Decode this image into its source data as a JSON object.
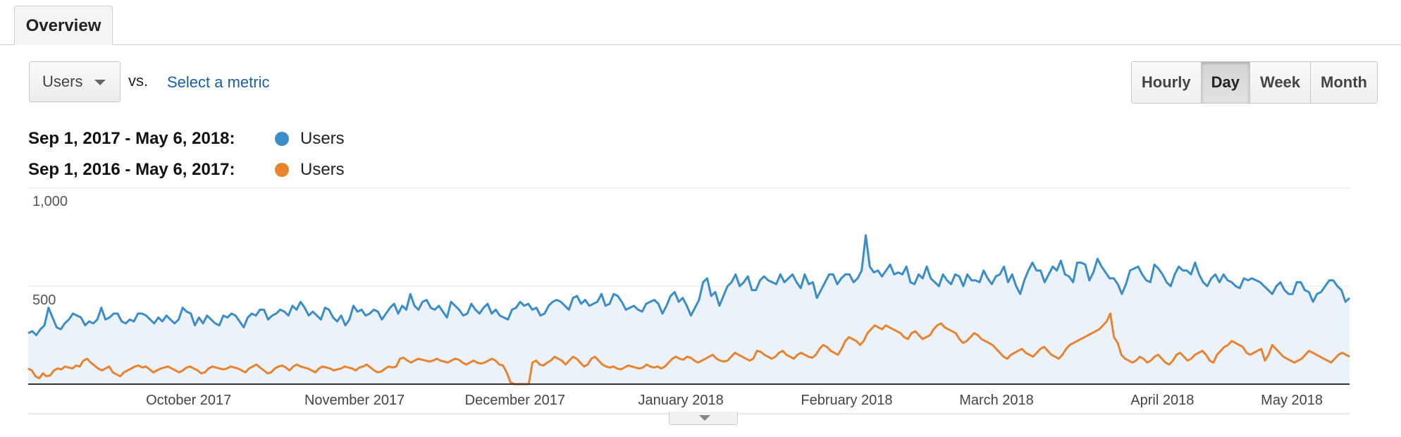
{
  "tabs": {
    "overview_label": "Overview"
  },
  "metric_selector": {
    "value": "Users",
    "vs_label": "vs.",
    "select_metric_label": "Select a metric"
  },
  "granularity": {
    "options": [
      "Hourly",
      "Day",
      "Week",
      "Month"
    ],
    "selected": "Day"
  },
  "legend": [
    {
      "range": "Sep 1, 2017 - May 6, 2018:",
      "metric": "Users",
      "color": "#3b8dc8"
    },
    {
      "range": "Sep 1, 2016 - May 6, 2017:",
      "metric": "Users",
      "color": "#e8832f"
    }
  ],
  "colors": {
    "series_current": "#3b8dc8",
    "series_previous": "#e8832f",
    "area_fill": "#ebf2fa"
  },
  "icons": {
    "dropdown": "caret-down-icon",
    "expand": "expand-triangle-icon"
  },
  "chart_data": {
    "type": "line",
    "x_start": "2017-09-01",
    "x_end": "2018-05-06",
    "y_ticks": [
      "1,000",
      "500"
    ],
    "x_tick_labels": [
      {
        "label": "October 2017",
        "date": "2017-10-01"
      },
      {
        "label": "November 2017",
        "date": "2017-11-01"
      },
      {
        "label": "December 2017",
        "date": "2017-12-01"
      },
      {
        "label": "January 2018",
        "date": "2018-01-01"
      },
      {
        "label": "February 2018",
        "date": "2018-02-01"
      },
      {
        "label": "March 2018",
        "date": "2018-03-01"
      },
      {
        "label": "April 2018",
        "date": "2018-04-01"
      },
      {
        "label": "May 2018",
        "date": "2018-05-01"
      }
    ],
    "ylim": [
      0,
      1000
    ],
    "grid": true,
    "series": [
      {
        "name": "Users",
        "date_range": "Sep 1, 2017 - May 6, 2018",
        "fill": true,
        "values": [
          260,
          270,
          250,
          280,
          300,
          390,
          340,
          290,
          280,
          310,
          330,
          360,
          350,
          340,
          300,
          320,
          310,
          330,
          390,
          330,
          340,
          360,
          360,
          320,
          310,
          330,
          320,
          360,
          360,
          350,
          330,
          310,
          340,
          320,
          350,
          330,
          310,
          330,
          390,
          370,
          360,
          300,
          340,
          310,
          350,
          330,
          310,
          300,
          350,
          340,
          360,
          350,
          320,
          290,
          340,
          360,
          350,
          380,
          380,
          330,
          350,
          360,
          380,
          370,
          350,
          400,
          380,
          420,
          390,
          350,
          370,
          350,
          330,
          390,
          380,
          340,
          320,
          350,
          300,
          330,
          400,
          370,
          380,
          350,
          360,
          380,
          370,
          330,
          360,
          390,
          410,
          360,
          400,
          380,
          460,
          400,
          380,
          420,
          430,
          390,
          380,
          400,
          370,
          340,
          420,
          400,
          380,
          350,
          360,
          410,
          380,
          360,
          390,
          410,
          360,
          380,
          350,
          340,
          330,
          380,
          390,
          420,
          400,
          410,
          380,
          390,
          350,
          360,
          400,
          420,
          430,
          420,
          400,
          380,
          440,
          450,
          410,
          430,
          400,
          410,
          420,
          460,
          400,
          410,
          460,
          450,
          420,
          380,
          390,
          400,
          380,
          370,
          410,
          420,
          430,
          410,
          360,
          400,
          450,
          470,
          420,
          440,
          400,
          350,
          390,
          430,
          520,
          540,
          450,
          470,
          400,
          450,
          500,
          520,
          560,
          500,
          520,
          550,
          480,
          480,
          530,
          550,
          530,
          520,
          510,
          560,
          520,
          540,
          560,
          520,
          490,
          560,
          510,
          520,
          440,
          480,
          520,
          560,
          560,
          510,
          540,
          560,
          560,
          520,
          540,
          580,
          760,
          600,
          570,
          580,
          550,
          580,
          610,
          560,
          570,
          560,
          600,
          520,
          510,
          560,
          540,
          600,
          540,
          520,
          500,
          560,
          530,
          510,
          560,
          550,
          500,
          560,
          530,
          530,
          520,
          580,
          540,
          510,
          550,
          560,
          600,
          520,
          560,
          500,
          460,
          530,
          580,
          620,
          580,
          580,
          520,
          560,
          600,
          580,
          630,
          560,
          550,
          520,
          620,
          620,
          610,
          530,
          570,
          640,
          600,
          570,
          540,
          540,
          510,
          460,
          510,
          580,
          590,
          600,
          560,
          530,
          520,
          610,
          590,
          560,
          520,
          500,
          560,
          600,
          580,
          580,
          560,
          620,
          560,
          520,
          500,
          540,
          560,
          520,
          560,
          530,
          520,
          500,
          490,
          540,
          530,
          540,
          530,
          520,
          500,
          480,
          460,
          500,
          520,
          480,
          460,
          460,
          520,
          520,
          480,
          470,
          420,
          460,
          470,
          500,
          530,
          530,
          500,
          480,
          420,
          440
        ]
      },
      {
        "name": "Users",
        "date_range": "Sep 1, 2016 - May 6, 2017",
        "fill": false,
        "values": [
          80,
          70,
          40,
          30,
          55,
          40,
          45,
          70,
          80,
          75,
          90,
          85,
          80,
          95,
          90,
          120,
          130,
          110,
          95,
          80,
          70,
          80,
          90,
          60,
          50,
          40,
          60,
          70,
          80,
          90,
          95,
          85,
          90,
          75,
          60,
          70,
          80,
          85,
          90,
          80,
          70,
          60,
          70,
          85,
          90,
          80,
          70,
          55,
          60,
          80,
          90,
          85,
          80,
          75,
          80,
          90,
          85,
          80,
          70,
          60,
          80,
          90,
          100,
          85,
          70,
          55,
          60,
          80,
          90,
          95,
          85,
          70,
          90,
          100,
          90,
          85,
          80,
          70,
          60,
          80,
          90,
          85,
          80,
          70,
          75,
          80,
          90,
          85,
          80,
          70,
          85,
          90,
          100,
          85,
          70,
          60,
          65,
          80,
          90,
          85,
          90,
          130,
          135,
          120,
          110,
          120,
          130,
          125,
          120,
          115,
          120,
          130,
          120,
          115,
          110,
          120,
          130,
          125,
          110,
          100,
          110,
          120,
          110,
          105,
          110,
          120,
          130,
          120,
          100,
          95,
          60,
          10,
          0,
          0,
          0,
          0,
          0,
          110,
          120,
          100,
          95,
          110,
          120,
          140,
          130,
          120,
          100,
          120,
          140,
          130,
          110,
          90,
          100,
          130,
          140,
          120,
          100,
          90,
          85,
          90,
          80,
          75,
          85,
          95,
          90,
          85,
          80,
          85,
          100,
          90,
          85,
          90,
          80,
          90,
          110,
          130,
          140,
          130,
          125,
          140,
          135,
          120,
          110,
          120,
          130,
          140,
          150,
          130,
          120,
          115,
          120,
          140,
          160,
          150,
          140,
          130,
          120,
          130,
          170,
          165,
          150,
          140,
          130,
          140,
          160,
          170,
          150,
          140,
          130,
          150,
          160,
          150,
          140,
          135,
          150,
          180,
          200,
          190,
          170,
          160,
          150,
          180,
          220,
          240,
          230,
          220,
          200,
          220,
          260,
          280,
          300,
          290,
          280,
          300,
          290,
          280,
          270,
          260,
          240,
          230,
          260,
          270,
          250,
          230,
          240,
          250,
          280,
          300,
          310,
          290,
          280,
          270,
          260,
          230,
          210,
          220,
          240,
          260,
          250,
          230,
          220,
          210,
          200,
          180,
          160,
          140,
          130,
          150,
          160,
          170,
          180,
          160,
          150,
          140,
          160,
          180,
          190,
          170,
          150,
          140,
          130,
          150,
          180,
          200,
          210,
          220,
          230,
          240,
          250,
          260,
          270,
          280,
          300,
          320,
          360,
          240,
          210,
          150,
          130,
          120,
          110,
          120,
          140,
          130,
          110,
          120,
          140,
          150,
          130,
          110,
          100,
          120,
          150,
          160,
          140,
          120,
          130,
          150,
          160,
          170,
          150,
          120,
          110,
          150,
          170,
          190,
          200,
          220,
          210,
          200,
          190,
          160,
          150,
          160,
          170,
          180,
          120,
          150,
          200,
          180,
          160,
          140,
          130,
          120,
          110,
          120,
          130,
          150,
          170,
          160,
          150,
          140,
          130,
          120,
          110,
          130,
          150,
          160,
          150,
          140
        ]
      }
    ]
  }
}
